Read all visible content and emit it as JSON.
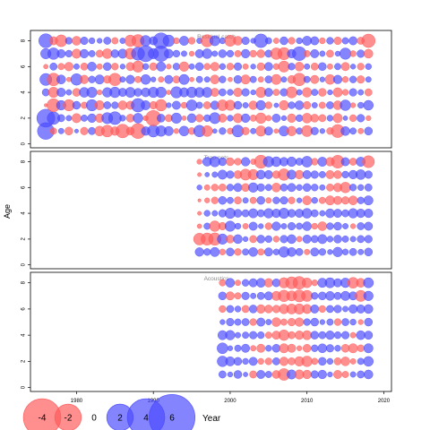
{
  "chart_data": {
    "type": "bubble",
    "ylabel": "Age",
    "legend": {
      "title": "Year",
      "values": [
        -4,
        -2,
        0,
        2,
        4,
        6
      ],
      "labels": [
        "-4",
        "-2",
        "0",
        "2",
        "4",
        "6"
      ],
      "position": "bottom-left",
      "colors": {
        "negative": "#ff5a5a",
        "positive": "#4a4aff"
      }
    },
    "x_axis": {
      "ticks": [
        1980,
        1990,
        2000,
        2010,
        2020
      ],
      "labels": [
        "1980",
        "1990",
        "2000",
        "2010",
        "2020"
      ],
      "range": [
        1974,
        2021
      ]
    },
    "y_axis": {
      "ticks": [
        0,
        2,
        4,
        6,
        8
      ],
      "labels": [
        "0",
        "2",
        "4",
        "6",
        "8"
      ],
      "range": [
        -0.3,
        8.8
      ]
    },
    "ages": [
      1,
      2,
      3,
      4,
      5,
      6,
      7,
      8
    ],
    "panels": [
      {
        "title": "Residual catch",
        "years": [
          1976,
          1977,
          1978,
          1979,
          1980,
          1981,
          1982,
          1983,
          1984,
          1985,
          1986,
          1987,
          1988,
          1989,
          1990,
          1991,
          1992,
          1993,
          1994,
          1995,
          1996,
          1997,
          1998,
          1999,
          2000,
          2001,
          2002,
          2003,
          2004,
          2005,
          2006,
          2007,
          2008,
          2009,
          2010,
          2011,
          2012,
          2013,
          2014,
          2015,
          2016,
          2017,
          2018
        ],
        "residuals": [
          [
            5.2,
            -0.8,
            0.6,
            -1.2,
            0.3,
            -1.1,
            1.0,
            -1.8,
            -2.6,
            -1.4,
            -3.5,
            -1.2,
            -4.2,
            1.4,
            2.7,
            2.1,
            1.6,
            -0.5,
            1.8,
            -0.9,
            2.5,
            -2.2,
            0.4,
            0.9,
            -0.7,
            2.6,
            -1.1,
            0.6,
            -2.0,
            1.3,
            -0.4,
            1.9,
            -1.7,
            0.8,
            -2.3,
            1.1,
            0.5,
            -0.9,
            -3.2,
            1.5,
            0.8,
            -0.6,
            1.2
          ],
          [
            6.0,
            3.0,
            1.0,
            0.6,
            -1.6,
            0.8,
            1.4,
            -1.4,
            2.3,
            3.1,
            0.7,
            -1.2,
            1.8,
            -0.5,
            -4.4,
            1.2,
            -1.0,
            2.0,
            -0.4,
            1.5,
            -1.1,
            0.9,
            2.3,
            -1.3,
            0.7,
            -1.6,
            1.4,
            -0.8,
            -2.1,
            -0.6,
            1.3,
            0.5,
            -1.4,
            0.9,
            -1.8,
            -1.2,
            -1.0,
            0.7,
            -1.6,
            0.4,
            -0.9,
            1.1,
            -0.5
          ],
          [
            -0.2,
            -3.2,
            1.7,
            -2.4,
            1.2,
            -0.8,
            2.4,
            -1.6,
            1.0,
            0.9,
            -1.5,
            -1.3,
            3.4,
            1.6,
            -1.1,
            -2.5,
            0.5,
            1.3,
            -0.7,
            2.2,
            0.8,
            -1.0,
            1.4,
            -2.2,
            -2.0,
            1.2,
            0.6,
            -1.4,
            1.7,
            -0.9,
            0.4,
            -1.7,
            0.9,
            1.5,
            -1.1,
            0.6,
            -0.8,
            1.0,
            -1.5,
            2.1,
            -0.5,
            0.7,
            1.8
          ],
          [
            1.0,
            -2.0,
            1.4,
            0.6,
            -1.2,
            1.8,
            2.0,
            -0.5,
            1.7,
            2.1,
            1.3,
            1.9,
            1.2,
            1.5,
            2.0,
            2.1,
            -0.4,
            2.4,
            1.6,
            2.1,
            1.8,
            1.9,
            -1.3,
            1.0,
            0.7,
            -1.4,
            1.1,
            0.5,
            -2.0,
            1.3,
            -0.8,
            1.1,
            -2.3,
            0.6,
            -1.7,
            0.8,
            -1.2,
            0.5,
            -1.6,
            -0.7,
            1.1,
            0.6,
            -1.0
          ],
          [
            2.7,
            -3.0,
            1.5,
            -0.4,
            2.5,
            -1.4,
            0.9,
            1.6,
            -1.1,
            -2.9,
            0.6,
            1.4,
            -0.8,
            1.8,
            0.5,
            -0.6,
            1.3,
            -1.0,
            1.9,
            -0.4,
            0.8,
            0.6,
            -1.5,
            0.9,
            -0.4,
            1.2,
            -1.6,
            0.8,
            -0.6,
            1.0,
            -1.9,
            0.6,
            -1.2,
            -3.0,
            0.8,
            -1.3,
            0.5,
            -1.8,
            1.4,
            -0.7,
            0.9,
            -1.1,
            0.6
          ],
          [
            -0.4,
            1.0,
            -0.8,
            -1.4,
            0.6,
            -1.0,
            1.5,
            -0.6,
            1.2,
            -0.9,
            0.5,
            -1.3,
            -2.4,
            0.7,
            -1.1,
            1.6,
            -0.5,
            0.9,
            -1.7,
            0.6,
            1.2,
            -0.8,
            -1.4,
            0.7,
            -0.9,
            1.1,
            -0.6,
            0.5,
            -1.1,
            1.3,
            -0.7,
            -2.3,
            0.9,
            -1.5,
            0.6,
            -1.0,
            1.2,
            -0.6,
            0.8,
            -1.3,
            0.5,
            -0.9,
            0.7
          ],
          [
            2.0,
            2.5,
            1.3,
            0.9,
            -1.6,
            1.4,
            0.8,
            -1.0,
            -1.8,
            1.2,
            1.6,
            -2.3,
            3.2,
            4.8,
            2.0,
            4.5,
            1.5,
            0.9,
            0.6,
            -0.5,
            1.3,
            1.8,
            0.6,
            1.2,
            0.9,
            -0.8,
            1.4,
            -0.9,
            -1.2,
            1.0,
            -2.5,
            -2.8,
            1.4,
            3.6,
            -0.8,
            1.3,
            0.6,
            -1.0,
            0.5,
            2.4,
            -0.7,
            1.1,
            -1.5
          ],
          [
            3.7,
            -1.3,
            -2.6,
            0.9,
            -1.5,
            1.1,
            0.7,
            0.5,
            1.0,
            -0.8,
            0.6,
            -2.4,
            -2.9,
            2.1,
            1.3,
            4.6,
            2.5,
            -0.7,
            1.6,
            -0.9,
            0.6,
            -2.8,
            1.9,
            0.7,
            -2.3,
            -1.5,
            1.1,
            0.5,
            3.5,
            0.8,
            -0.6,
            1.2,
            -0.9,
            0.7,
            1.6,
            1.3,
            -0.7,
            0.9,
            -1.1,
            0.8,
            1.3,
            -1.0,
            -3.4
          ]
        ]
      },
      {
        "title": "Trap-nets",
        "years": [
          1996,
          1997,
          1998,
          1999,
          2000,
          2001,
          2002,
          2003,
          2004,
          2005,
          2006,
          2007,
          2008,
          2009,
          2010,
          2011,
          2012,
          2013,
          2014,
          2015,
          2016,
          2017,
          2018
        ],
        "residuals": [
          [
            1.4,
            0.9,
            1.6,
            -0.7,
            1.2,
            -0.9,
            0.8,
            1.5,
            -0.8,
            1.3,
            0.7,
            2.1,
            1.5,
            1.0,
            -0.6,
            1.3,
            0.9,
            0.5,
            1.7,
            0.7,
            1.0,
            0.6,
            1.2
          ],
          [
            -2.6,
            -2.8,
            -2.9,
            2.0,
            -1.2,
            1.5,
            0.5,
            -1.0,
            1.2,
            0.9,
            -0.7,
            1.1,
            1.5,
            -0.6,
            1.3,
            1.0,
            1.6,
            0.7,
            1.2,
            0.8,
            0.6,
            1.0,
            1.1
          ],
          [
            -0.4,
            0.8,
            -2.1,
            -1.1,
            2.0,
            0.7,
            -0.6,
            1.3,
            0.5,
            -0.9,
            1.4,
            0.6,
            1.1,
            0.8,
            1.5,
            -0.7,
            -1.5,
            0.9,
            1.2,
            0.6,
            -0.5,
            1.0,
            1.3
          ],
          [
            -0.3,
            0.7,
            0.6,
            1.1,
            2.0,
            1.2,
            1.0,
            1.6,
            1.0,
            1.7,
            1.4,
            2.0,
            1.2,
            1.3,
            1.8,
            1.0,
            0.6,
            1.5,
            1.3,
            1.0,
            1.7,
            1.4,
            1.4
          ],
          [
            -0.2,
            -0.5,
            -0.9,
            1.2,
            0.8,
            -1.0,
            0.6,
            -0.8,
            1.2,
            -0.6,
            0.9,
            1.1,
            -0.9,
            0.5,
            -1.5,
            0.7,
            -0.8,
            -1.6,
            -1.3,
            -1.1,
            -1.5,
            0.9,
            1.6
          ],
          [
            0.5,
            -0.6,
            -0.9,
            -1.0,
            0.9,
            1.3,
            -1.2,
            1.7,
            1.1,
            0.8,
            -1.5,
            1.0,
            1.3,
            0.7,
            1.2,
            0.9,
            0.6,
            -1.0,
            -1.4,
            -2.1,
            0.9,
            0.7,
            1.0
          ],
          [
            -0.3,
            0.4,
            0.6,
            1.6,
            1.1,
            -1.2,
            -2.3,
            -2.0,
            1.5,
            1.3,
            -1.1,
            -2.5,
            1.6,
            -1.4,
            1.3,
            1.1,
            0.8,
            -1.3,
            -1.2,
            0.9,
            1.4,
            1.8,
            1.1
          ],
          [
            -0.5,
            1.5,
            2.0,
            1.2,
            -1.2,
            -0.9,
            1.4,
            -0.6,
            -3.2,
            2.1,
            1.8,
            1.4,
            1.7,
            1.0,
            2.2,
            -0.9,
            1.6,
            -1.4,
            -3.1,
            1.3,
            -1.0,
            1.6,
            -2.7
          ]
        ]
      },
      {
        "title": "Acoustics",
        "years": [
          1999,
          2000,
          2001,
          2002,
          2003,
          2004,
          2005,
          2006,
          2007,
          2008,
          2009,
          2010,
          2011,
          2012,
          2013,
          2014,
          2015,
          2016,
          2017,
          2018
        ],
        "residuals": [
          [
            1.0,
            0.5,
            1.2,
            0.4,
            -1.0,
            1.3,
            0.8,
            -1.2,
            -2.6,
            1.6,
            -1.6,
            -1.4,
            1.1,
            1.4,
            0.5,
            -1.3,
            -0.8,
            0.6,
            1.0,
            1.5
          ],
          [
            2.1,
            1.6,
            1.2,
            0.7,
            1.3,
            -0.7,
            -0.9,
            1.0,
            -1.4,
            -1.0,
            -1.7,
            -2.1,
            -0.8,
            1.2,
            0.7,
            -1.0,
            -1.5,
            -0.6,
            0.8,
            1.8
          ],
          [
            2.2,
            0.5,
            0.8,
            1.3,
            -0.6,
            -1.3,
            0.7,
            1.2,
            -1.6,
            -1.3,
            -0.5,
            -1.2,
            0.9,
            1.5,
            1.1,
            0.7,
            -1.2,
            -1.6,
            -0.9,
            1.6
          ],
          [
            1.6,
            1.7,
            0.6,
            0.8,
            1.1,
            0.9,
            -0.8,
            -1.3,
            -2.1,
            -1.0,
            -1.4,
            -1.6,
            1.2,
            1.0,
            1.4,
            0.9,
            1.1,
            -0.6,
            1.5,
            1.3
          ],
          [
            0.5,
            1.1,
            0.8,
            1.0,
            -0.9,
            1.3,
            0.6,
            -1.5,
            -0.8,
            -1.1,
            -1.4,
            0.9,
            1.2,
            0.5,
            0.8,
            -0.9,
            1.0,
            0.7,
            -0.5,
            1.2
          ],
          [
            -0.9,
            1.0,
            0.7,
            -1.0,
            1.2,
            -1.4,
            -1.2,
            -1.1,
            -1.7,
            -1.9,
            -2.0,
            -1.6,
            1.3,
            -0.9,
            1.0,
            1.1,
            0.6,
            1.4,
            1.3,
            1.5
          ],
          [
            1.2,
            -1.3,
            -0.8,
            1.1,
            0.6,
            1.0,
            1.3,
            -1.6,
            -2.5,
            -1.9,
            -2.7,
            -2.3,
            0.9,
            1.2,
            1.5,
            1.0,
            1.6,
            1.3,
            -2.3,
            1.7
          ],
          [
            -0.8,
            1.5,
            -0.6,
            0.9,
            1.3,
            1.5,
            -1.4,
            1.2,
            -2.0,
            -2.7,
            -3.0,
            -1.8,
            -0.7,
            1.6,
            1.9,
            1.3,
            1.7,
            -2.2,
            -1.5,
            1.9
          ]
        ]
      }
    ]
  }
}
